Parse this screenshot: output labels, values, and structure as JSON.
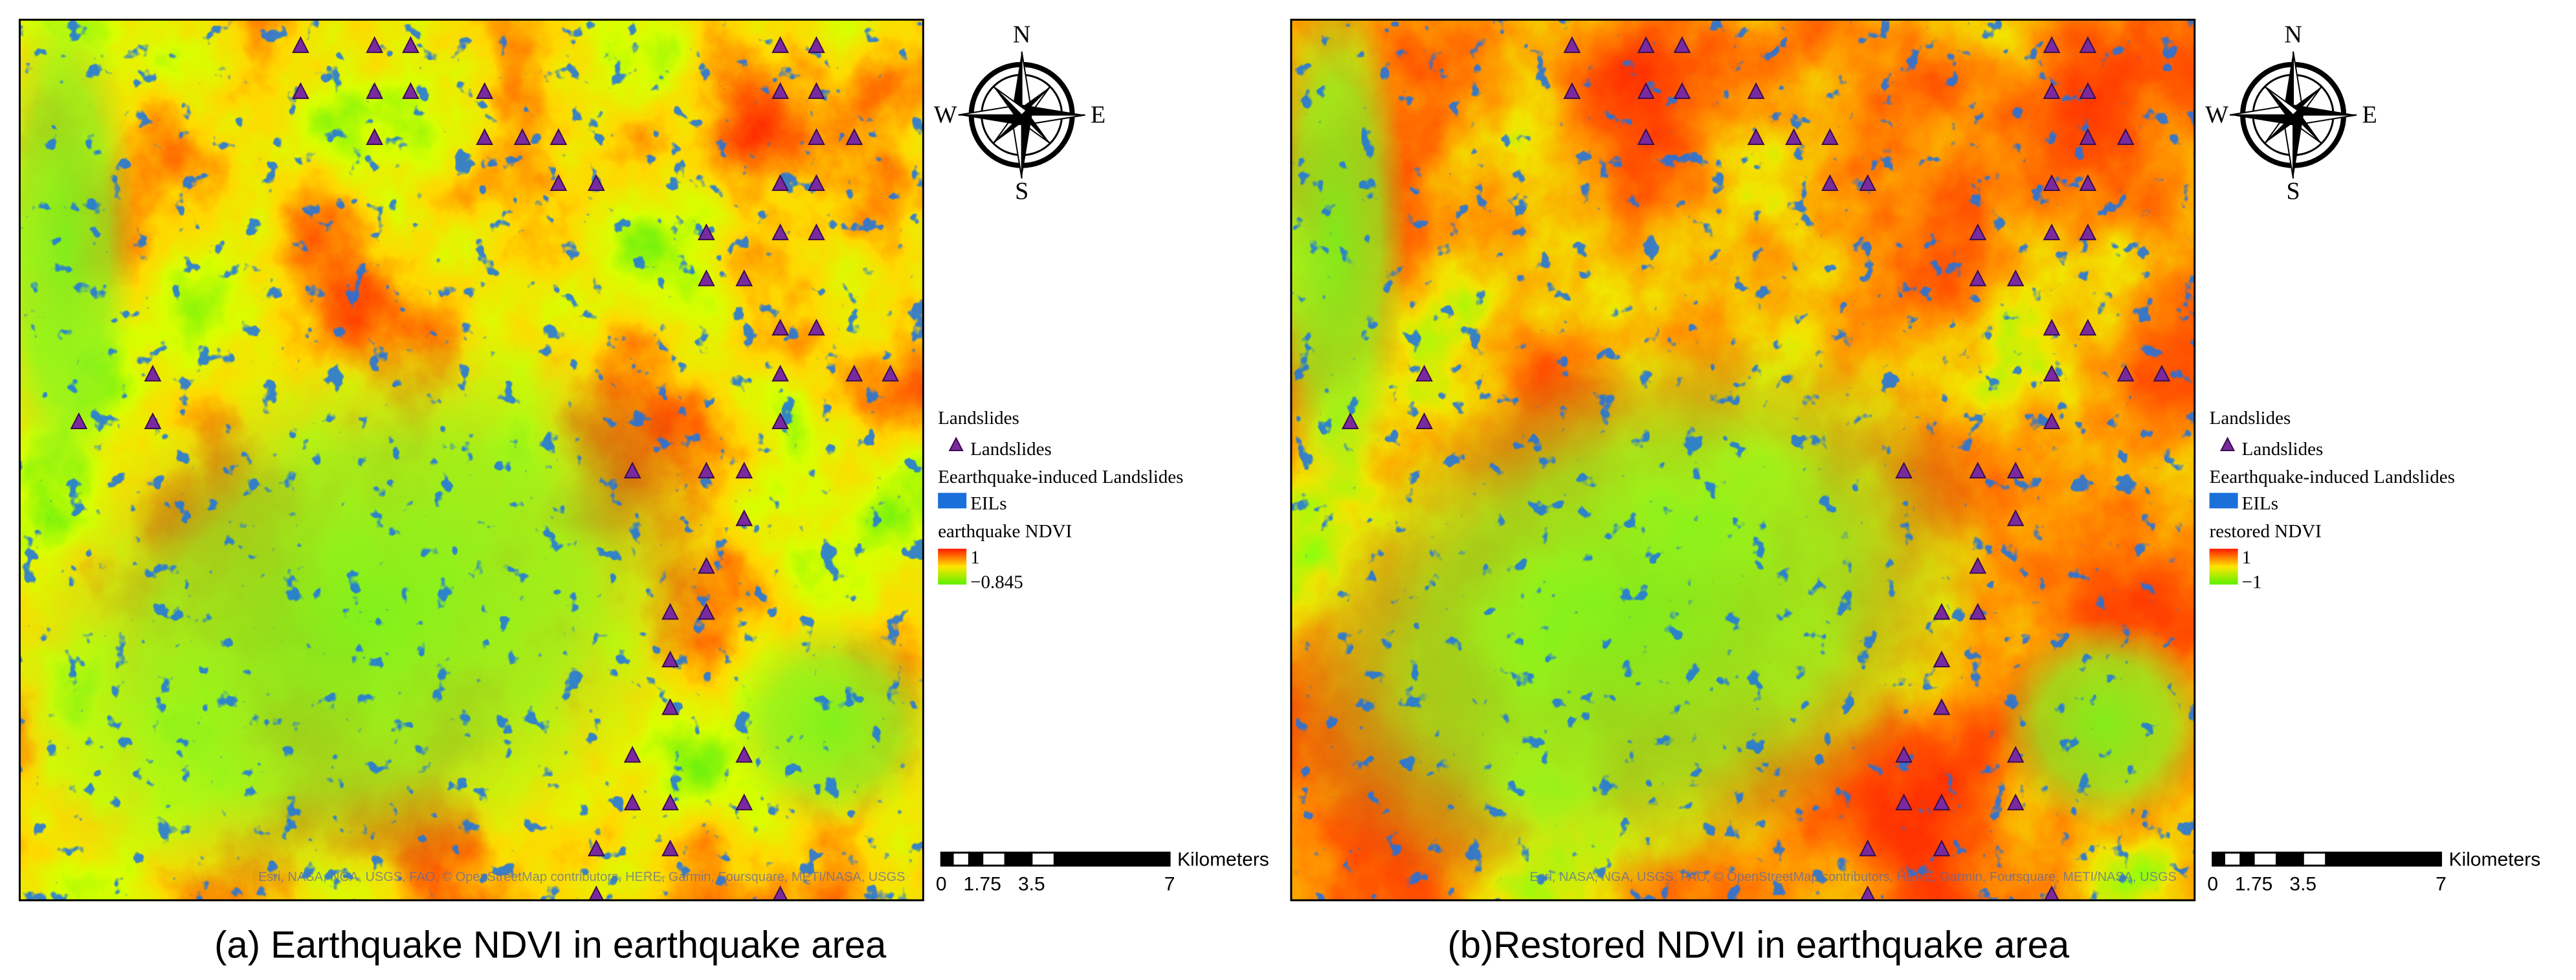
{
  "panels": [
    {
      "caption": "(a) Earthquake NDVI in earthquake area",
      "compass": {
        "n": "N",
        "e": "E",
        "s": "S",
        "w": "W"
      },
      "legend": {
        "title": "Landslides",
        "landslides": "Landslides",
        "eil_title": "Eearthquake-induced Landslides",
        "eil": "EILs",
        "ndvi_title": "earthquake NDVI",
        "ndvi_max": "1",
        "ndvi_min": "−0.845"
      },
      "scale": {
        "ticks": [
          "0",
          "1.75",
          "3.5",
          "7"
        ],
        "unit": "Kilometers"
      },
      "attribution": "Esri, NASA, NGA, USGS, FAO, © OpenStreetMap contributors, HERE, Garmin, Foursquare, METI/NASA, USGS"
    },
    {
      "caption": "(b)Restored NDVI in earthquake area",
      "compass": {
        "n": "N",
        "e": "E",
        "s": "S",
        "w": "W"
      },
      "legend": {
        "title": "Landslides",
        "landslides": "Landslides",
        "eil_title": "Eearthquake-induced Landslides",
        "eil": "EILs",
        "ndvi_title": "restored NDVI",
        "ndvi_max": "1",
        "ndvi_min": "−1"
      },
      "scale": {
        "ticks": [
          "0",
          "1.75",
          "3.5",
          "7"
        ],
        "unit": "Kilometers"
      },
      "attribution": "Esri, NASA, NGA, USGS, FAO, © OpenStreetMap contributors, HERE, Garmin, Foursquare, METI/NASA, USGS"
    }
  ]
}
